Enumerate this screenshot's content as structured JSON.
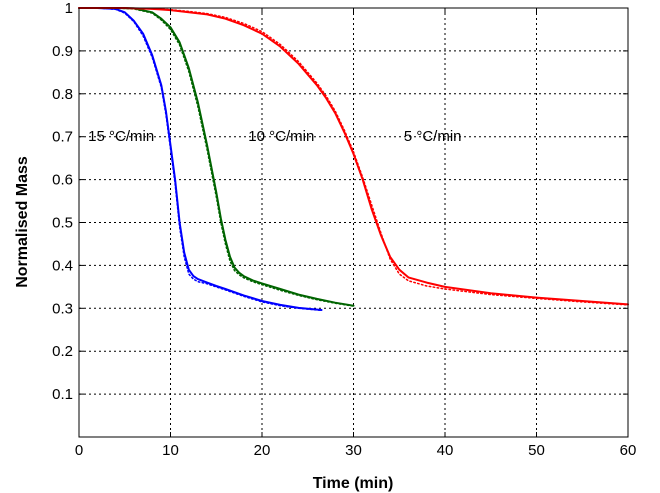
{
  "chart_data": {
    "type": "line",
    "title": "",
    "xlabel": "Time (min)",
    "ylabel": "Normalised Mass",
    "xlim": [
      0,
      60
    ],
    "ylim": [
      0,
      1
    ],
    "xticks": [
      0,
      10,
      20,
      30,
      40,
      50,
      60
    ],
    "yticks": [
      0.1,
      0.2,
      0.3,
      0.4,
      0.5,
      0.6,
      0.7,
      0.8,
      0.9,
      1
    ],
    "grid": true,
    "legend": "none",
    "annotations": [
      {
        "text": "15 °C/min",
        "x": 1,
        "y": 0.69
      },
      {
        "text": "10 °C/min",
        "x": 18.5,
        "y": 0.69
      },
      {
        "text": "5 °C/min",
        "x": 35.5,
        "y": 0.69
      }
    ],
    "series": [
      {
        "color": "#0000ff",
        "style": "solid",
        "x": [
          0,
          2,
          4,
          5,
          6,
          7,
          8,
          9,
          9.5,
          10,
          10.5,
          11,
          11.5,
          12,
          12.5,
          13,
          14,
          15,
          16,
          18,
          20,
          22,
          24,
          26.5
        ],
        "y": [
          1.0,
          1.0,
          0.998,
          0.99,
          0.97,
          0.94,
          0.89,
          0.82,
          0.76,
          0.68,
          0.6,
          0.5,
          0.43,
          0.39,
          0.375,
          0.368,
          0.36,
          0.352,
          0.345,
          0.33,
          0.317,
          0.308,
          0.301,
          0.296
        ]
      },
      {
        "color": "#0000ff",
        "style": "dotted",
        "x": [
          0,
          2,
          4,
          5,
          6,
          7,
          8,
          9,
          9.5,
          10,
          10.5,
          11,
          11.5,
          12,
          12.5,
          13,
          14,
          15,
          16,
          18,
          20,
          22,
          24,
          26.5
        ],
        "y": [
          1.0,
          1.0,
          0.997,
          0.988,
          0.968,
          0.935,
          0.885,
          0.815,
          0.752,
          0.672,
          0.59,
          0.49,
          0.42,
          0.38,
          0.368,
          0.362,
          0.357,
          0.35,
          0.343,
          0.328,
          0.315,
          0.306,
          0.3,
          0.295
        ]
      },
      {
        "color": "#006400",
        "style": "solid",
        "x": [
          0,
          4,
          6,
          8,
          9,
          10,
          11,
          12,
          13,
          14,
          15,
          15.5,
          16,
          16.5,
          17,
          17.5,
          18,
          19,
          20,
          22,
          24,
          26,
          28,
          30
        ],
        "y": [
          1.0,
          1.0,
          0.999,
          0.99,
          0.975,
          0.955,
          0.92,
          0.86,
          0.78,
          0.68,
          0.57,
          0.51,
          0.46,
          0.42,
          0.395,
          0.383,
          0.375,
          0.365,
          0.358,
          0.345,
          0.332,
          0.322,
          0.313,
          0.306
        ]
      },
      {
        "color": "#006400",
        "style": "dotted",
        "x": [
          0,
          4,
          6,
          8,
          9,
          10,
          11,
          12,
          13,
          14,
          15,
          15.5,
          16,
          16.5,
          17,
          17.5,
          18,
          19,
          20,
          22,
          24,
          26,
          28,
          30
        ],
        "y": [
          1.0,
          1.0,
          0.998,
          0.988,
          0.972,
          0.95,
          0.914,
          0.852,
          0.77,
          0.67,
          0.56,
          0.5,
          0.45,
          0.41,
          0.388,
          0.378,
          0.371,
          0.362,
          0.355,
          0.342,
          0.33,
          0.32,
          0.312,
          0.305
        ]
      },
      {
        "color": "#ff0000",
        "style": "solid",
        "x": [
          0,
          5,
          8,
          10,
          12,
          14,
          16,
          18,
          20,
          22,
          24,
          26,
          27,
          28,
          29,
          30,
          31,
          32,
          33,
          34,
          35,
          36,
          38,
          40,
          45,
          50,
          55,
          60
        ],
        "y": [
          1.0,
          1.0,
          0.998,
          0.995,
          0.99,
          0.985,
          0.975,
          0.96,
          0.94,
          0.91,
          0.87,
          0.82,
          0.79,
          0.755,
          0.71,
          0.66,
          0.6,
          0.53,
          0.47,
          0.42,
          0.39,
          0.372,
          0.36,
          0.35,
          0.335,
          0.325,
          0.317,
          0.309
        ]
      },
      {
        "color": "#ff0000",
        "style": "dotted",
        "x": [
          0,
          5,
          8,
          10,
          12,
          14,
          16,
          18,
          20,
          22,
          24,
          26,
          27,
          28,
          29,
          30,
          31,
          32,
          33,
          34,
          35,
          36,
          38,
          40,
          45,
          50,
          55,
          60
        ],
        "y": [
          1.0,
          1.0,
          0.998,
          0.996,
          0.992,
          0.987,
          0.978,
          0.964,
          0.945,
          0.915,
          0.875,
          0.825,
          0.795,
          0.76,
          0.715,
          0.665,
          0.605,
          0.54,
          0.475,
          0.415,
          0.38,
          0.364,
          0.352,
          0.345,
          0.332,
          0.323,
          0.315,
          0.308
        ]
      }
    ]
  }
}
